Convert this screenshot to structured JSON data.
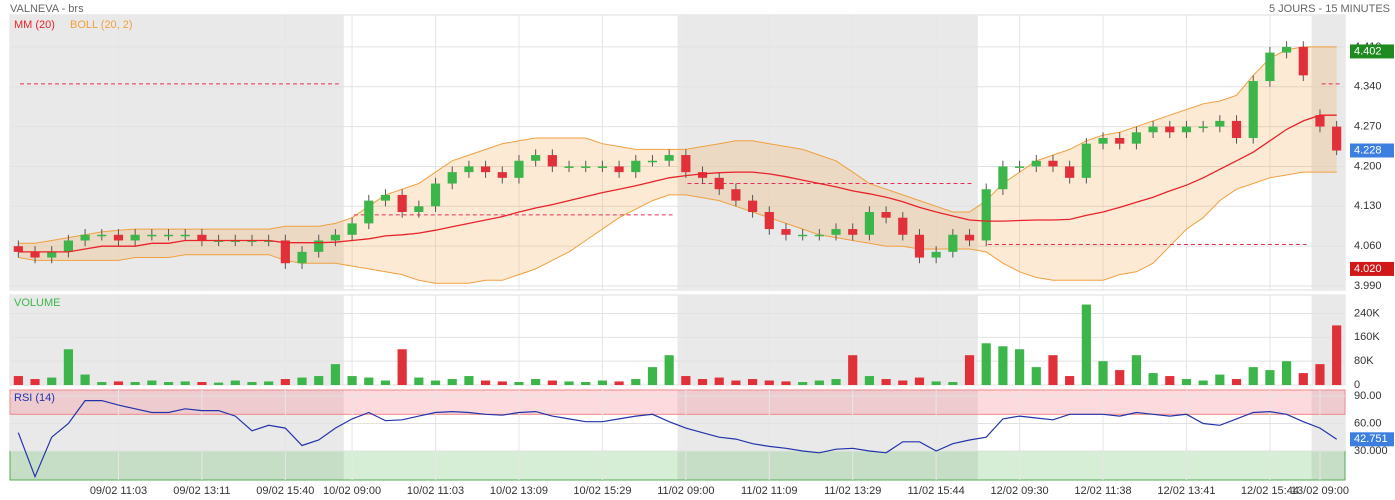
{
  "chart_data": {
    "type": "candlestick",
    "title": "VALNEVA - brs",
    "subtitle": "5 JOURS - 15 MINUTES",
    "categories": [
      null,
      null,
      null,
      null,
      null,
      null,
      "09/02 11:03",
      null,
      null,
      null,
      null,
      "09/02 13:11",
      null,
      null,
      null,
      null,
      "09/02 15:40",
      null,
      null,
      null,
      "10/02 09:00",
      null,
      null,
      null,
      null,
      "10/02 11:03",
      null,
      null,
      null,
      null,
      "10/02 13:09",
      null,
      null,
      null,
      null,
      "10/02 15:29",
      null,
      null,
      null,
      null,
      "11/02 09:00",
      null,
      null,
      null,
      null,
      "11/02 11:09",
      null,
      null,
      null,
      null,
      "11/02 13:29",
      null,
      null,
      null,
      null,
      "11/02 15:44",
      null,
      null,
      null,
      null,
      "12/02 09:30",
      null,
      null,
      null,
      null,
      "12/02 11:38",
      null,
      null,
      null,
      null,
      "12/02 13:41",
      null,
      null,
      null,
      null,
      "12/02 15:44",
      null,
      null,
      "13/02 09:00",
      null
    ],
    "open": [
      4.06,
      4.05,
      4.04,
      4.05,
      4.07,
      4.08,
      4.08,
      4.07,
      4.08,
      4.08,
      4.08,
      4.08,
      4.07,
      4.07,
      4.07,
      4.07,
      4.07,
      4.03,
      4.05,
      4.07,
      4.08,
      4.1,
      4.14,
      4.15,
      4.12,
      4.13,
      4.17,
      4.19,
      4.2,
      4.19,
      4.18,
      4.21,
      4.22,
      4.2,
      4.2,
      4.2,
      4.2,
      4.19,
      4.21,
      4.21,
      4.22,
      4.19,
      4.18,
      4.16,
      4.14,
      4.12,
      4.09,
      4.08,
      4.08,
      4.08,
      4.09,
      4.08,
      4.12,
      4.11,
      4.08,
      4.04,
      4.05,
      4.08,
      4.07,
      4.16,
      4.2,
      4.2,
      4.21,
      4.2,
      4.18,
      4.24,
      4.25,
      4.24,
      4.26,
      4.27,
      4.26,
      4.27,
      4.27,
      4.28,
      4.25,
      4.35,
      4.4,
      4.41,
      4.29,
      4.27
    ],
    "high": [
      4.07,
      4.06,
      4.06,
      4.08,
      4.09,
      4.09,
      4.09,
      4.09,
      4.09,
      4.09,
      4.09,
      4.09,
      4.08,
      4.08,
      4.08,
      4.08,
      4.08,
      4.06,
      4.08,
      4.09,
      4.11,
      4.15,
      4.16,
      4.16,
      4.14,
      4.18,
      4.2,
      4.21,
      4.21,
      4.2,
      4.22,
      4.23,
      4.23,
      4.21,
      4.21,
      4.21,
      4.21,
      4.22,
      4.22,
      4.23,
      4.23,
      4.2,
      4.19,
      4.17,
      4.15,
      4.13,
      4.1,
      4.09,
      4.09,
      4.1,
      4.1,
      4.13,
      4.13,
      4.12,
      4.09,
      4.06,
      4.09,
      4.09,
      4.17,
      4.21,
      4.21,
      4.22,
      4.22,
      4.21,
      4.25,
      4.26,
      4.26,
      4.27,
      4.28,
      4.28,
      4.28,
      4.28,
      4.29,
      4.29,
      4.36,
      4.41,
      4.42,
      4.42,
      4.3,
      4.28
    ],
    "low": [
      4.04,
      4.03,
      4.03,
      4.04,
      4.06,
      4.07,
      4.06,
      4.06,
      4.07,
      4.07,
      4.07,
      4.06,
      4.06,
      4.06,
      4.06,
      4.06,
      4.02,
      4.02,
      4.04,
      4.06,
      4.07,
      4.09,
      4.13,
      4.11,
      4.11,
      4.12,
      4.16,
      4.18,
      4.18,
      4.17,
      4.17,
      4.2,
      4.19,
      4.19,
      4.19,
      4.19,
      4.18,
      4.18,
      4.2,
      4.2,
      4.18,
      4.17,
      4.15,
      4.13,
      4.11,
      4.08,
      4.07,
      4.07,
      4.07,
      4.07,
      4.07,
      4.07,
      4.1,
      4.07,
      4.03,
      4.03,
      4.04,
      4.06,
      4.06,
      4.15,
      4.19,
      4.19,
      4.19,
      4.17,
      4.17,
      4.23,
      4.23,
      4.23,
      4.25,
      4.25,
      4.25,
      4.26,
      4.26,
      4.24,
      4.24,
      4.34,
      4.39,
      4.35,
      4.26,
      4.22
    ],
    "close": [
      4.05,
      4.04,
      4.05,
      4.07,
      4.08,
      4.08,
      4.07,
      4.08,
      4.08,
      4.08,
      4.08,
      4.07,
      4.07,
      4.07,
      4.07,
      4.07,
      4.03,
      4.05,
      4.07,
      4.08,
      4.1,
      4.14,
      4.15,
      4.12,
      4.13,
      4.17,
      4.19,
      4.2,
      4.19,
      4.18,
      4.21,
      4.22,
      4.2,
      4.2,
      4.2,
      4.2,
      4.19,
      4.21,
      4.21,
      4.22,
      4.19,
      4.18,
      4.16,
      4.14,
      4.12,
      4.09,
      4.08,
      4.08,
      4.08,
      4.09,
      4.08,
      4.12,
      4.11,
      4.08,
      4.04,
      4.05,
      4.08,
      4.07,
      4.16,
      4.2,
      4.2,
      4.21,
      4.2,
      4.18,
      4.24,
      4.25,
      4.24,
      4.26,
      4.27,
      4.26,
      4.27,
      4.27,
      4.28,
      4.25,
      4.35,
      4.4,
      4.41,
      4.36,
      4.27,
      4.228
    ],
    "colors": {
      "up": "#3cb64a",
      "down": "#e0303a"
    },
    "ylim": [
      3.983,
      4.466
    ],
    "yticks": [
      {
        "value": 3.99,
        "label": "3.990"
      },
      {
        "value": 4.06,
        "label": "4.060"
      },
      {
        "value": 4.13,
        "label": "4.130"
      },
      {
        "value": 4.2,
        "label": "4.200"
      },
      {
        "value": 4.27,
        "label": "4.270"
      },
      {
        "value": 4.34,
        "label": "4.340"
      },
      {
        "value": 4.41,
        "label": "4.410"
      }
    ],
    "mm": {
      "name": "MM (20)",
      "color": "#e8232a",
      "values": [
        4.05,
        4.05,
        4.05,
        4.05,
        4.055,
        4.06,
        4.06,
        4.06,
        4.065,
        4.065,
        4.07,
        4.07,
        4.07,
        4.07,
        4.07,
        4.07,
        4.066,
        4.066,
        4.066,
        4.067,
        4.07,
        4.073,
        4.078,
        4.08,
        4.083,
        4.088,
        4.094,
        4.1,
        4.106,
        4.112,
        4.12,
        4.127,
        4.133,
        4.14,
        4.147,
        4.154,
        4.16,
        4.166,
        4.173,
        4.18,
        4.184,
        4.187,
        4.189,
        4.19,
        4.19,
        4.187,
        4.182,
        4.176,
        4.17,
        4.164,
        4.157,
        4.152,
        4.146,
        4.138,
        4.128,
        4.12,
        4.113,
        4.106,
        4.104,
        4.104,
        4.105,
        4.106,
        4.106,
        4.107,
        4.114,
        4.12,
        4.128,
        4.137,
        4.146,
        4.157,
        4.167,
        4.18,
        4.195,
        4.21,
        4.225,
        4.245,
        4.265,
        4.28,
        4.29,
        4.29
      ]
    },
    "bollinger": {
      "name": "BOLL (20, 2)",
      "color": "#f0a040",
      "upper": [
        4.065,
        4.065,
        4.07,
        4.075,
        4.08,
        4.085,
        4.088,
        4.09,
        4.09,
        4.09,
        4.09,
        4.09,
        4.09,
        4.09,
        4.09,
        4.09,
        4.095,
        4.095,
        4.095,
        4.1,
        4.11,
        4.13,
        4.15,
        4.16,
        4.17,
        4.19,
        4.21,
        4.22,
        4.23,
        4.24,
        4.245,
        4.25,
        4.25,
        4.25,
        4.25,
        4.24,
        4.235,
        4.23,
        4.23,
        4.23,
        4.23,
        4.235,
        4.24,
        4.245,
        4.245,
        4.24,
        4.235,
        4.23,
        4.22,
        4.21,
        4.19,
        4.17,
        4.16,
        4.15,
        4.14,
        4.13,
        4.12,
        4.12,
        4.14,
        4.17,
        4.19,
        4.21,
        4.22,
        4.23,
        4.245,
        4.255,
        4.26,
        4.27,
        4.28,
        4.29,
        4.3,
        4.31,
        4.315,
        4.325,
        4.36,
        4.39,
        4.405,
        4.41,
        4.41,
        4.41
      ],
      "lower": [
        4.04,
        4.035,
        4.035,
        4.035,
        4.035,
        4.035,
        4.035,
        4.04,
        4.04,
        4.04,
        4.045,
        4.045,
        4.045,
        4.045,
        4.045,
        4.045,
        4.035,
        4.03,
        4.03,
        4.03,
        4.025,
        4.02,
        4.015,
        4.01,
        4.0,
        3.995,
        3.995,
        3.995,
        4.0,
        4.0,
        4.01,
        4.02,
        4.035,
        4.05,
        4.07,
        4.09,
        4.11,
        4.125,
        4.14,
        4.15,
        4.15,
        4.145,
        4.14,
        4.13,
        4.12,
        4.11,
        4.1,
        4.09,
        4.08,
        4.075,
        4.07,
        4.065,
        4.06,
        4.06,
        4.055,
        4.055,
        4.055,
        4.055,
        4.05,
        4.03,
        4.015,
        4.005,
        4.0,
        4.0,
        4.0,
        4.0,
        4.01,
        4.015,
        4.03,
        4.06,
        4.09,
        4.11,
        4.14,
        4.16,
        4.17,
        4.18,
        4.185,
        4.19,
        4.19,
        4.19
      ]
    },
    "reference_lines": {
      "color": "#e0305a",
      "values": [
        4.345,
        4.115,
        4.17,
        4.063,
        4.345
      ]
    },
    "price_markers": [
      {
        "value": 4.402,
        "color": "#1f8a1f"
      },
      {
        "value": 4.228,
        "color": "#3d7fe0"
      },
      {
        "value": 4.02,
        "label": "4.020",
        "color": "#d01818"
      }
    ],
    "volume": {
      "title": "VOLUME",
      "ylim": [
        0,
        302000
      ],
      "yticks": [
        0,
        {
          "value": 80000,
          "label": "80K"
        },
        {
          "value": 160000,
          "label": "160K"
        },
        {
          "value": 240000,
          "label": "240K"
        }
      ],
      "values": [
        30000,
        20000,
        25000,
        120000,
        35000,
        10000,
        12000,
        10000,
        15000,
        10000,
        12000,
        10000,
        8000,
        15000,
        10000,
        12000,
        20000,
        25000,
        30000,
        70000,
        30000,
        25000,
        15000,
        120000,
        25000,
        15000,
        20000,
        30000,
        15000,
        12000,
        10000,
        20000,
        15000,
        12000,
        10000,
        15000,
        12000,
        20000,
        60000,
        100000,
        30000,
        20000,
        25000,
        15000,
        20000,
        15000,
        12000,
        10000,
        15000,
        20000,
        100000,
        30000,
        20000,
        15000,
        25000,
        12000,
        10000,
        100000,
        140000,
        130000,
        120000,
        60000,
        100000,
        30000,
        270000,
        80000,
        50000,
        100000,
        40000,
        30000,
        20000,
        15000,
        35000,
        20000,
        60000,
        50000,
        80000,
        40000,
        70000,
        200000
      ]
    },
    "rsi": {
      "title": "RSI (14)",
      "color": "#2233aa",
      "ylim": [
        -1.6,
        96.5
      ],
      "yticks": [
        {
          "value": 30,
          "label": "30.000"
        },
        {
          "value": 60,
          "label": "60.00"
        },
        {
          "value": 90,
          "label": "90.00"
        }
      ],
      "overbought": 70,
      "oversold": 30,
      "values": [
        50,
        2,
        45,
        60,
        85,
        85,
        80,
        76,
        72,
        72,
        76,
        74,
        74,
        68,
        52,
        58,
        55,
        36,
        42,
        55,
        65,
        72,
        63,
        64,
        68,
        72,
        73,
        72,
        70,
        69,
        72,
        73,
        68,
        65,
        62,
        62,
        65,
        68,
        70,
        62,
        55,
        50,
        45,
        43,
        38,
        35,
        33,
        30,
        28,
        32,
        33,
        30,
        28,
        40,
        40,
        30,
        38,
        42,
        45,
        65,
        68,
        66,
        64,
        70,
        70,
        70,
        68,
        72,
        70,
        68,
        70,
        60,
        58,
        65,
        72,
        73,
        70,
        62,
        55,
        42.751
      ],
      "marker": {
        "value": 42.751,
        "color": "#3d7fe0"
      }
    }
  }
}
